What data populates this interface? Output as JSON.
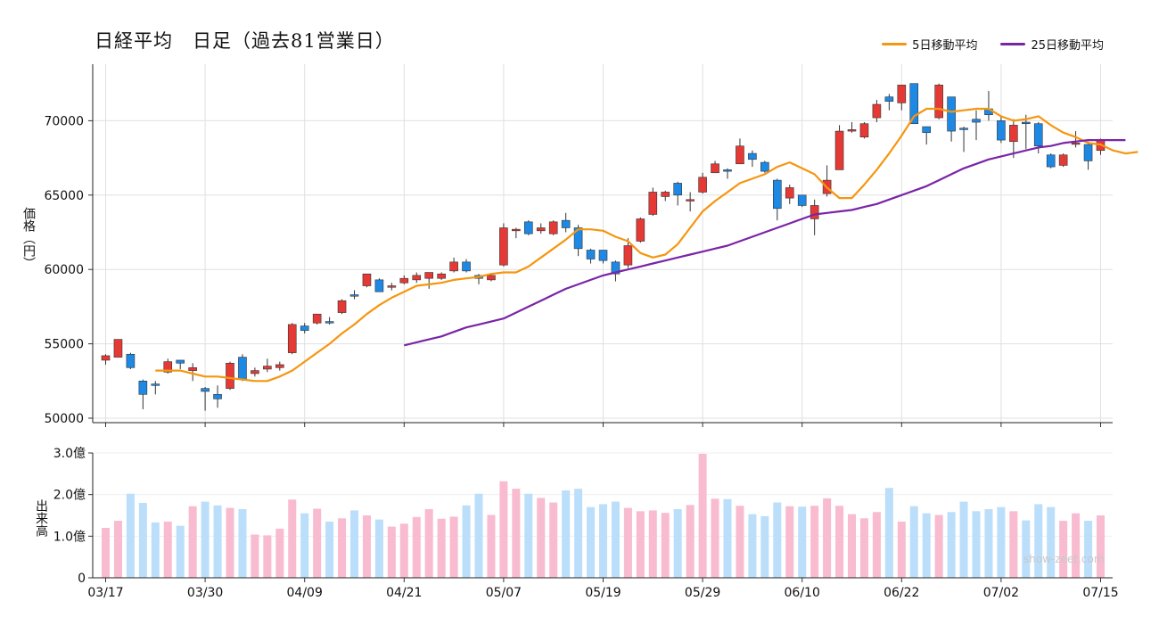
{
  "title": "日経平均　日足（過去81営業日）",
  "legend": {
    "ma5": {
      "label": "5日移動平均",
      "color": "#f5960f"
    },
    "ma25": {
      "label": "25日移動平均",
      "color": "#7a24a6"
    }
  },
  "ylabel": "価格（円）",
  "volume_ylabel": "出来高",
  "watermark": "show-zeet.com",
  "colors": {
    "up": "#e53935",
    "down": "#1e88e5",
    "vol_up": "#f8bbd0",
    "vol_down": "#bbdefb",
    "wick": "#333333"
  },
  "chart_data": [
    {
      "type": "candlestick",
      "title": "日経平均　日足（過去81営業日）",
      "ylabel": "価格（円）",
      "ylim": [
        49700,
        73800
      ],
      "yticks": [
        50000,
        55000,
        60000,
        65000,
        70000
      ],
      "grid": true,
      "legend_position": "top-right",
      "x_tick_labels": [
        {
          "index": 0,
          "label": "03/17"
        },
        {
          "index": 8,
          "label": "03/30"
        },
        {
          "index": 16,
          "label": "04/09"
        },
        {
          "index": 24,
          "label": "04/21"
        },
        {
          "index": 32,
          "label": "05/07"
        },
        {
          "index": 40,
          "label": "05/19"
        },
        {
          "index": 48,
          "label": "05/29"
        },
        {
          "index": 56,
          "label": "06/10"
        },
        {
          "index": 64,
          "label": "06/22"
        },
        {
          "index": 72,
          "label": "07/02"
        },
        {
          "index": 80,
          "label": "07/15"
        }
      ],
      "ohlc": [
        [
          53900,
          54200,
          53600,
          54300
        ],
        [
          54100,
          55300,
          54100,
          55200
        ],
        [
          54300,
          53400,
          53300,
          54400
        ],
        [
          52500,
          51600,
          50600,
          52600
        ],
        [
          52300,
          52200,
          51600,
          52500
        ],
        [
          53100,
          53800,
          53000,
          54000
        ],
        [
          53900,
          53700,
          53300,
          53900
        ],
        [
          53200,
          53400,
          52500,
          53700
        ],
        [
          52000,
          51800,
          50500,
          52100
        ],
        [
          51600,
          51300,
          50700,
          52200
        ],
        [
          52000,
          53700,
          51900,
          53800
        ],
        [
          54100,
          52600,
          52500,
          54300
        ],
        [
          53000,
          53200,
          52800,
          53400
        ],
        [
          53300,
          53500,
          53100,
          54000
        ],
        [
          53400,
          53600,
          53200,
          53800
        ],
        [
          54400,
          56300,
          54300,
          56400
        ],
        [
          56200,
          55900,
          55700,
          56400
        ],
        [
          56400,
          57000,
          56300,
          57000
        ],
        [
          56500,
          56400,
          56300,
          56800
        ],
        [
          57100,
          57900,
          57000,
          58000
        ],
        [
          58300,
          58200,
          58000,
          58600
        ],
        [
          58900,
          59700,
          58800,
          59700
        ],
        [
          59300,
          58500,
          58500,
          59400
        ],
        [
          58800,
          58900,
          58600,
          59100
        ],
        [
          59100,
          59400,
          59000,
          59600
        ],
        [
          59300,
          59600,
          59100,
          59800
        ],
        [
          59400,
          59800,
          58700,
          59800
        ],
        [
          59400,
          59700,
          59300,
          59800
        ],
        [
          59900,
          60500,
          59800,
          60800
        ],
        [
          60500,
          59900,
          59800,
          60700
        ],
        [
          59600,
          59400,
          59000,
          59700
        ],
        [
          59300,
          59600,
          59200,
          59700
        ],
        [
          60300,
          62800,
          60200,
          63100
        ],
        [
          62600,
          62700,
          62100,
          62800
        ],
        [
          63200,
          62400,
          62300,
          63300
        ],
        [
          62600,
          62800,
          62400,
          63100
        ],
        [
          62400,
          63200,
          62300,
          63300
        ],
        [
          63300,
          62800,
          62500,
          63800
        ],
        [
          62800,
          61400,
          60900,
          63000
        ],
        [
          61300,
          60700,
          60400,
          61400
        ],
        [
          61300,
          60600,
          60400,
          61300
        ],
        [
          60500,
          59700,
          59200,
          60600
        ],
        [
          60300,
          61600,
          60100,
          62100
        ],
        [
          61900,
          63400,
          61800,
          63500
        ],
        [
          63700,
          65200,
          63600,
          65500
        ],
        [
          64900,
          65200,
          64600,
          65300
        ],
        [
          65800,
          65000,
          64300,
          65900
        ],
        [
          64600,
          64700,
          63900,
          65200
        ],
        [
          65200,
          66200,
          65100,
          66500
        ],
        [
          66500,
          67100,
          66500,
          67300
        ],
        [
          66700,
          66600,
          66100,
          66800
        ],
        [
          67100,
          68300,
          67100,
          68800
        ],
        [
          67800,
          67400,
          66900,
          68000
        ],
        [
          67200,
          66600,
          66500,
          67300
        ],
        [
          66000,
          64100,
          63300,
          66100
        ],
        [
          64800,
          65500,
          64400,
          65700
        ],
        [
          65000,
          64300,
          64200,
          65000
        ],
        [
          63400,
          64300,
          62300,
          64700
        ],
        [
          65100,
          66000,
          64900,
          67000
        ],
        [
          66700,
          69300,
          66700,
          69700
        ],
        [
          69300,
          69400,
          69200,
          69900
        ],
        [
          68900,
          69800,
          68800,
          69900
        ],
        [
          70200,
          71100,
          69900,
          71400
        ],
        [
          71600,
          71300,
          70700,
          71800
        ],
        [
          71200,
          72400,
          70700,
          72400
        ],
        [
          72500,
          69800,
          69800,
          72500
        ],
        [
          69600,
          69200,
          68400,
          69600
        ],
        [
          70200,
          72400,
          70100,
          72500
        ],
        [
          71600,
          69300,
          68600,
          71600
        ],
        [
          69500,
          69400,
          67900,
          69600
        ],
        [
          70100,
          69900,
          68700,
          70700
        ],
        [
          70800,
          70400,
          70000,
          72000
        ],
        [
          70000,
          68700,
          68500,
          70300
        ],
        [
          68600,
          69700,
          67500,
          70100
        ],
        [
          69900,
          69800,
          68100,
          70400
        ],
        [
          69800,
          68300,
          67800,
          69900
        ],
        [
          67700,
          66900,
          66800,
          67800
        ],
        [
          67000,
          67700,
          66900,
          67800
        ],
        [
          68500,
          68500,
          68200,
          69300
        ],
        [
          68400,
          67300,
          66700,
          68600
        ],
        [
          68000,
          68700,
          67700,
          68800
        ]
      ],
      "series": [
        {
          "name": "5日移動平均",
          "start_index": 4,
          "values": [
            53200,
            53200,
            53200,
            53000,
            52800,
            52800,
            52700,
            52600,
            52500,
            52500,
            52800,
            53200,
            53800,
            54400,
            55000,
            55700,
            56300,
            57000,
            57600,
            58100,
            58500,
            58900,
            59000,
            59100,
            59300,
            59400,
            59500,
            59700,
            59800,
            59800,
            60200,
            60800,
            61400,
            62000,
            62700,
            62700,
            62600,
            62200,
            61900,
            61100,
            60800,
            61000,
            61700,
            62800,
            63900,
            64600,
            65200,
            65800,
            66100,
            66400,
            66900,
            67200,
            66800,
            66400,
            65500,
            64800,
            64800,
            65700,
            66700,
            67800,
            69000,
            70300,
            70800,
            70800,
            70600,
            70700,
            70800,
            70800,
            70300,
            70000,
            70100,
            70300,
            69700,
            69200,
            68900,
            68500,
            68400,
            68000,
            67800,
            67900
          ]
        },
        {
          "name": "25日移動平均",
          "start_index": 24,
          "values": [
            54900,
            55100,
            55300,
            55500,
            55800,
            56100,
            56300,
            56500,
            56700,
            57100,
            57500,
            57900,
            58300,
            58700,
            59000,
            59300,
            59600,
            59800,
            60000,
            60200,
            60400,
            60600,
            60800,
            61000,
            61200,
            61400,
            61600,
            61900,
            62200,
            62500,
            62800,
            63100,
            63400,
            63700,
            63800,
            63900,
            64000,
            64200,
            64400,
            64700,
            65000,
            65300,
            65600,
            66000,
            66400,
            66800,
            67100,
            67400,
            67600,
            67800,
            68000,
            68200,
            68300,
            68500,
            68600,
            68700,
            68700,
            68700,
            68700
          ]
        }
      ]
    },
    {
      "type": "bar",
      "ylabel": "出来高",
      "ylim": [
        0,
        3.0
      ],
      "ytick_labels": [
        "0",
        "1.0億",
        "2.0億",
        "3.0億"
      ],
      "unit": "億",
      "values": [
        1.2,
        1.37,
        2.02,
        1.8,
        1.33,
        1.35,
        1.25,
        1.72,
        1.83,
        1.74,
        1.68,
        1.65,
        1.04,
        1.02,
        1.18,
        1.88,
        1.55,
        1.66,
        1.35,
        1.43,
        1.62,
        1.5,
        1.4,
        1.23,
        1.3,
        1.46,
        1.65,
        1.42,
        1.47,
        1.74,
        2.02,
        1.51,
        2.32,
        2.14,
        2.02,
        1.92,
        1.81,
        2.1,
        2.14,
        1.7,
        1.77,
        1.83,
        1.68,
        1.6,
        1.62,
        1.56,
        1.65,
        1.75,
        2.98,
        1.9,
        1.89,
        1.73,
        1.53,
        1.48,
        1.81,
        1.72,
        1.71,
        1.73,
        1.91,
        1.73,
        1.53,
        1.43,
        1.58,
        2.16,
        1.35,
        1.72,
        1.55,
        1.51,
        1.58,
        1.83,
        1.6,
        1.65,
        1.7,
        1.6,
        1.38,
        1.77,
        1.7,
        1.37,
        1.55,
        1.37,
        1.5
      ]
    }
  ]
}
